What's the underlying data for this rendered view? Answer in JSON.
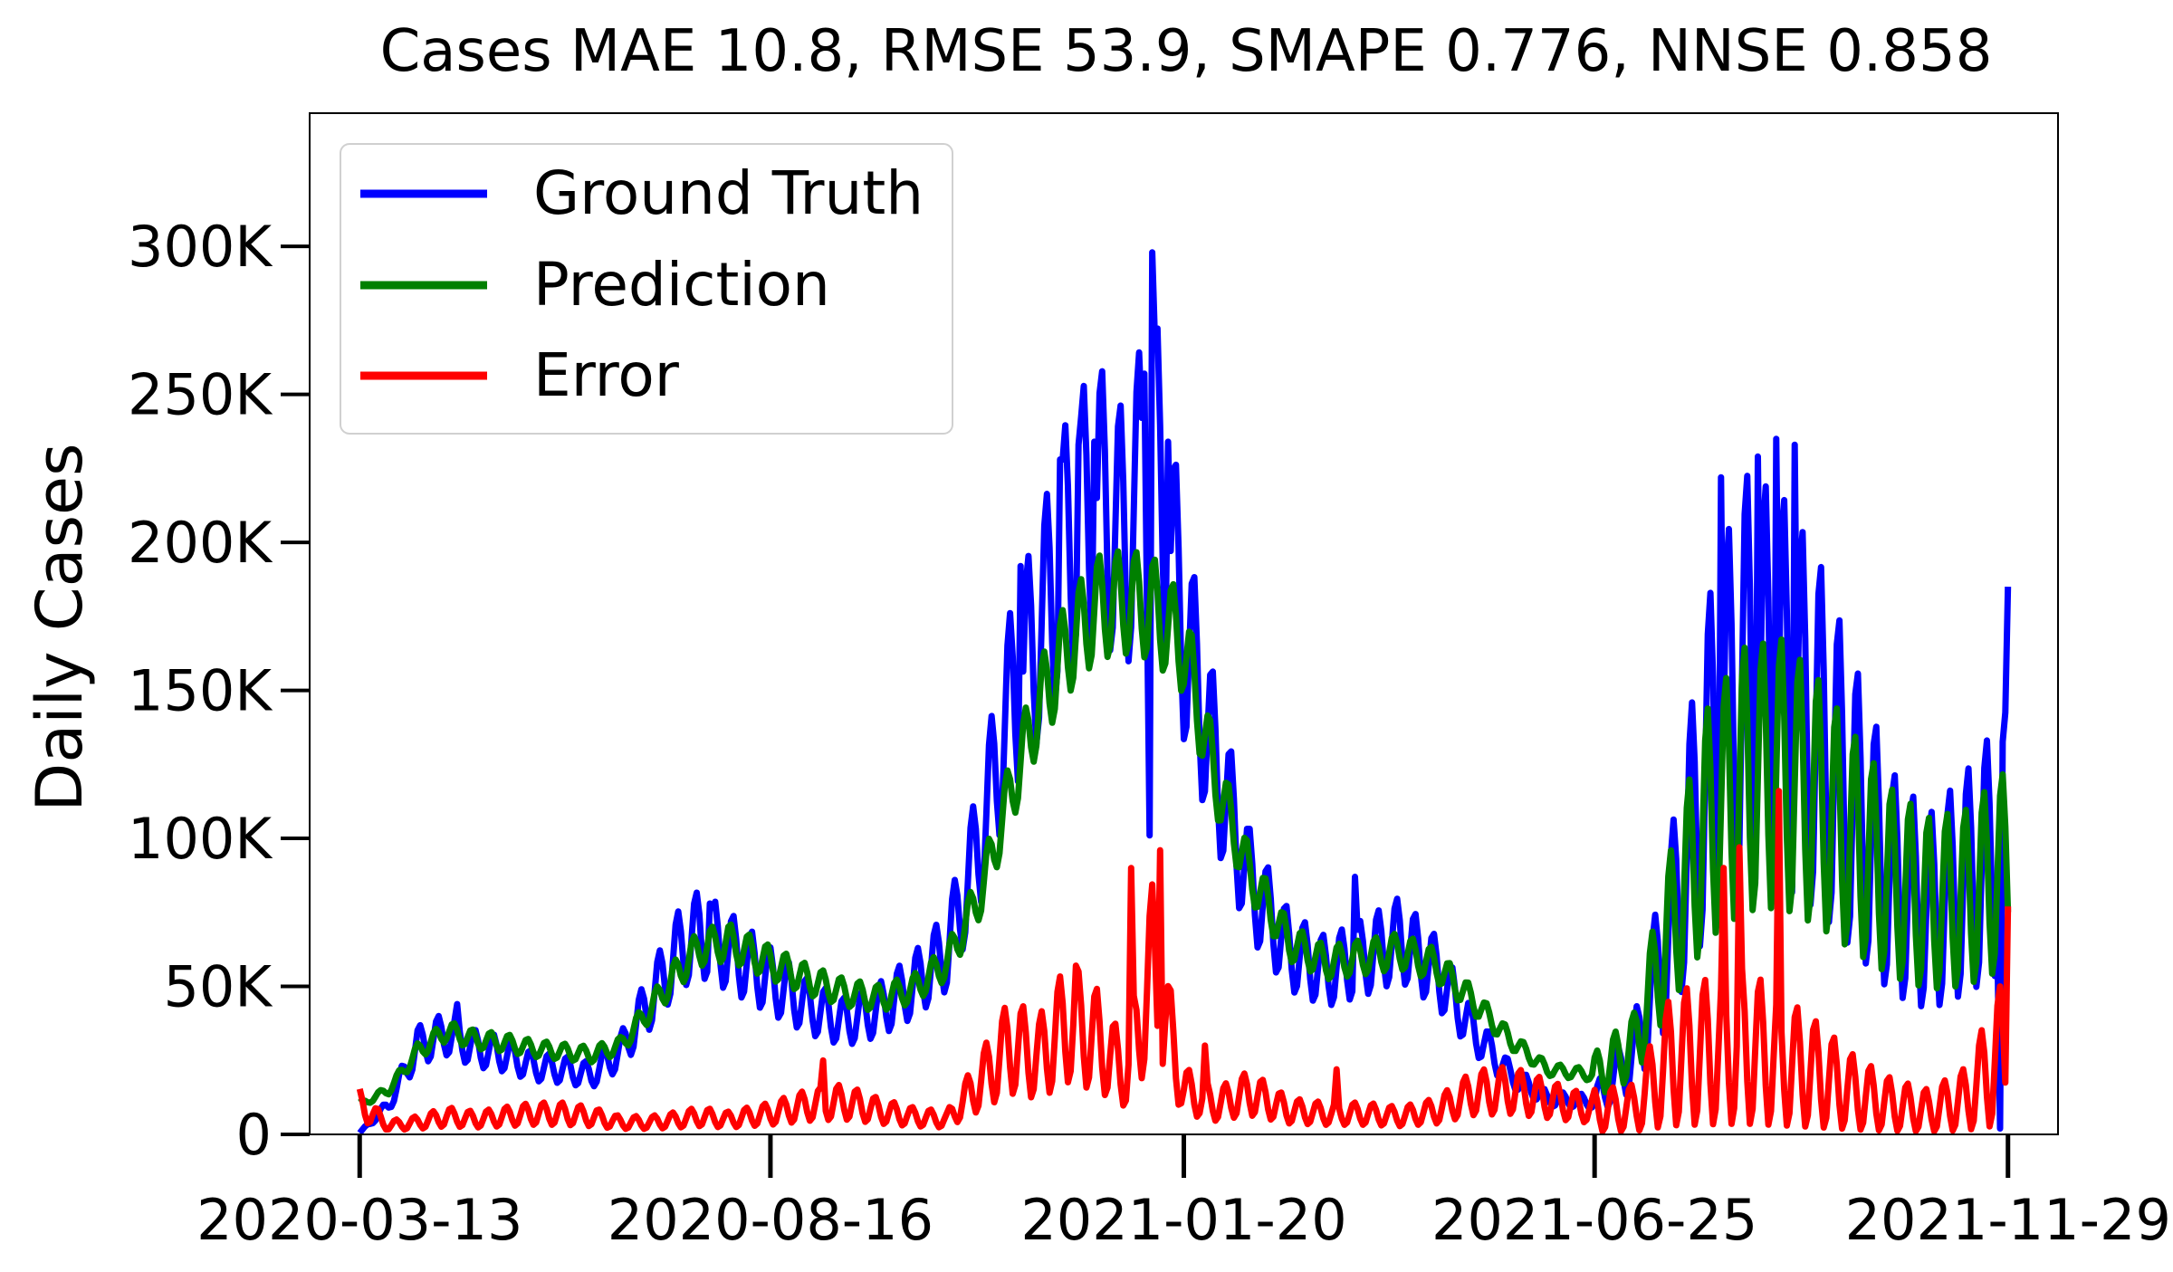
{
  "chart_data": {
    "type": "line",
    "title": "Cases MAE 10.8, RMSE 53.9, SMAPE 0.776, NNSE 0.858",
    "xlabel": "",
    "ylabel": "Daily Cases",
    "x_start": "2020-03-13",
    "x_end": "2021-11-29",
    "xlim": [
      "2020-02-23",
      "2021-12-18"
    ],
    "ylim": [
      0,
      345000
    ],
    "x_ticks": [
      "2020-03-13",
      "2020-08-16",
      "2021-01-20",
      "2021-06-25",
      "2021-11-29"
    ],
    "y_ticks": [
      0,
      50000,
      100000,
      150000,
      200000,
      250000,
      300000
    ],
    "y_tick_labels": [
      "0",
      "50K",
      "100K",
      "150K",
      "200K",
      "250K",
      "300K"
    ],
    "grid": false,
    "legend_position": "top-left",
    "series": [
      {
        "name": "Ground Truth",
        "color": "#0000ff",
        "keypoints": [
          {
            "x": "2020-03-13",
            "y": 500
          },
          {
            "x": "2020-03-24",
            "y": 10000
          },
          {
            "x": "2020-04-04",
            "y": 30000
          },
          {
            "x": "2020-04-15",
            "y": 34000
          },
          {
            "x": "2020-04-26",
            "y": 29000
          },
          {
            "x": "2020-05-07",
            "y": 27000
          },
          {
            "x": "2020-05-18",
            "y": 23000
          },
          {
            "x": "2020-05-29",
            "y": 22000
          },
          {
            "x": "2020-06-09",
            "y": 20000
          },
          {
            "x": "2020-06-20",
            "y": 28000
          },
          {
            "x": "2020-07-01",
            "y": 45000
          },
          {
            "x": "2020-07-12",
            "y": 62000
          },
          {
            "x": "2020-07-20",
            "y": 68000
          },
          {
            "x": "2020-07-31",
            "y": 62000
          },
          {
            "x": "2020-08-16",
            "y": 52000
          },
          {
            "x": "2020-08-31",
            "y": 43000
          },
          {
            "x": "2020-09-13",
            "y": 38000
          },
          {
            "x": "2020-09-26",
            "y": 42000
          },
          {
            "x": "2020-10-09",
            "y": 50000
          },
          {
            "x": "2020-10-22",
            "y": 62000
          },
          {
            "x": "2020-11-04",
            "y": 100000
          },
          {
            "x": "2020-11-15",
            "y": 145000
          },
          {
            "x": "2020-11-26",
            "y": 170000
          },
          {
            "x": "2020-12-07",
            "y": 200000
          },
          {
            "x": "2020-12-18",
            "y": 215000
          },
          {
            "x": "2020-12-29",
            "y": 200000
          },
          {
            "x": "2021-01-08",
            "y": 235000
          },
          {
            "x": "2021-01-20",
            "y": 170000
          },
          {
            "x": "2021-02-01",
            "y": 125000
          },
          {
            "x": "2021-02-14",
            "y": 85000
          },
          {
            "x": "2021-03-01",
            "y": 62000
          },
          {
            "x": "2021-03-15",
            "y": 55000
          },
          {
            "x": "2021-03-30",
            "y": 60000
          },
          {
            "x": "2021-04-12",
            "y": 66000
          },
          {
            "x": "2021-04-26",
            "y": 55000
          },
          {
            "x": "2021-05-10",
            "y": 35000
          },
          {
            "x": "2021-05-24",
            "y": 20000
          },
          {
            "x": "2021-06-07",
            "y": 12000
          },
          {
            "x": "2021-06-25",
            "y": 11000
          },
          {
            "x": "2021-07-10",
            "y": 27000
          },
          {
            "x": "2021-07-24",
            "y": 70000
          },
          {
            "x": "2021-08-07",
            "y": 125000
          },
          {
            "x": "2021-08-21",
            "y": 155000
          },
          {
            "x": "2021-09-04",
            "y": 150000
          },
          {
            "x": "2021-09-18",
            "y": 135000
          },
          {
            "x": "2021-10-02",
            "y": 110000
          },
          {
            "x": "2021-10-16",
            "y": 85000
          },
          {
            "x": "2021-10-30",
            "y": 75000
          },
          {
            "x": "2021-11-13",
            "y": 85000
          },
          {
            "x": "2021-11-29",
            "y": 100000
          }
        ],
        "spikes": [
          {
            "x": "2020-04-19",
            "y": 44000
          },
          {
            "x": "2020-07-24",
            "y": 78000
          },
          {
            "x": "2020-11-19",
            "y": 192000
          },
          {
            "x": "2020-12-04",
            "y": 228000
          },
          {
            "x": "2020-12-11",
            "y": 233000
          },
          {
            "x": "2020-12-17",
            "y": 234000
          },
          {
            "x": "2021-01-05",
            "y": 257000
          },
          {
            "x": "2021-01-08",
            "y": 298000
          },
          {
            "x": "2021-01-14",
            "y": 234000
          },
          {
            "x": "2021-01-07",
            "y": 101000
          },
          {
            "x": "2021-03-26",
            "y": 87000
          },
          {
            "x": "2021-08-12",
            "y": 222000
          },
          {
            "x": "2021-08-26",
            "y": 229000
          },
          {
            "x": "2021-09-02",
            "y": 235000
          },
          {
            "x": "2021-09-09",
            "y": 233000
          },
          {
            "x": "2021-11-29",
            "y": 185000
          },
          {
            "x": "2021-11-26",
            "y": 2000
          }
        ]
      },
      {
        "name": "Prediction",
        "color": "#008000",
        "keypoints": [
          {
            "x": "2020-03-13",
            "y": 10000
          },
          {
            "x": "2020-03-24",
            "y": 15000
          },
          {
            "x": "2020-04-04",
            "y": 28000
          },
          {
            "x": "2020-04-15",
            "y": 35000
          },
          {
            "x": "2020-04-26",
            "y": 32000
          },
          {
            "x": "2020-05-07",
            "y": 31000
          },
          {
            "x": "2020-05-18",
            "y": 29000
          },
          {
            "x": "2020-05-29",
            "y": 28000
          },
          {
            "x": "2020-06-09",
            "y": 27000
          },
          {
            "x": "2020-06-20",
            "y": 30000
          },
          {
            "x": "2020-07-01",
            "y": 42000
          },
          {
            "x": "2020-07-12",
            "y": 55000
          },
          {
            "x": "2020-07-20",
            "y": 63000
          },
          {
            "x": "2020-07-31",
            "y": 65000
          },
          {
            "x": "2020-08-16",
            "y": 58000
          },
          {
            "x": "2020-08-31",
            "y": 52000
          },
          {
            "x": "2020-09-13",
            "y": 48000
          },
          {
            "x": "2020-09-26",
            "y": 46000
          },
          {
            "x": "2020-10-09",
            "y": 49000
          },
          {
            "x": "2020-10-22",
            "y": 58000
          },
          {
            "x": "2020-11-04",
            "y": 82000
          },
          {
            "x": "2020-11-15",
            "y": 115000
          },
          {
            "x": "2020-11-26",
            "y": 145000
          },
          {
            "x": "2020-12-07",
            "y": 165000
          },
          {
            "x": "2020-12-18",
            "y": 178000
          },
          {
            "x": "2020-12-29",
            "y": 180000
          },
          {
            "x": "2021-01-08",
            "y": 178000
          },
          {
            "x": "2021-01-20",
            "y": 165000
          },
          {
            "x": "2021-02-01",
            "y": 120000
          },
          {
            "x": "2021-02-14",
            "y": 88000
          },
          {
            "x": "2021-03-01",
            "y": 65000
          },
          {
            "x": "2021-03-15",
            "y": 58000
          },
          {
            "x": "2021-03-30",
            "y": 60000
          },
          {
            "x": "2021-04-12",
            "y": 62000
          },
          {
            "x": "2021-04-26",
            "y": 57000
          },
          {
            "x": "2021-05-10",
            "y": 45000
          },
          {
            "x": "2021-05-24",
            "y": 32000
          },
          {
            "x": "2021-06-07",
            "y": 22000
          },
          {
            "x": "2021-06-25",
            "y": 20000
          },
          {
            "x": "2021-07-10",
            "y": 30000
          },
          {
            "x": "2021-07-24",
            "y": 70000
          },
          {
            "x": "2021-08-07",
            "y": 105000
          },
          {
            "x": "2021-08-21",
            "y": 120000
          },
          {
            "x": "2021-09-04",
            "y": 122000
          },
          {
            "x": "2021-09-18",
            "y": 112000
          },
          {
            "x": "2021-10-02",
            "y": 98000
          },
          {
            "x": "2021-10-16",
            "y": 85000
          },
          {
            "x": "2021-10-30",
            "y": 78000
          },
          {
            "x": "2021-11-13",
            "y": 80000
          },
          {
            "x": "2021-11-29",
            "y": 90000
          }
        ]
      },
      {
        "name": "Error",
        "color": "#ff0000",
        "keypoints": [
          {
            "x": "2020-03-13",
            "y": 10000
          },
          {
            "x": "2020-03-24",
            "y": 3000
          },
          {
            "x": "2020-04-04",
            "y": 4000
          },
          {
            "x": "2020-04-15",
            "y": 6000
          },
          {
            "x": "2020-04-26",
            "y": 5000
          },
          {
            "x": "2020-05-07",
            "y": 6000
          },
          {
            "x": "2020-05-18",
            "y": 7000
          },
          {
            "x": "2020-05-29",
            "y": 7000
          },
          {
            "x": "2020-06-09",
            "y": 6000
          },
          {
            "x": "2020-06-20",
            "y": 4000
          },
          {
            "x": "2020-07-01",
            "y": 4000
          },
          {
            "x": "2020-07-12",
            "y": 5000
          },
          {
            "x": "2020-07-20",
            "y": 6000
          },
          {
            "x": "2020-07-31",
            "y": 5000
          },
          {
            "x": "2020-08-16",
            "y": 7000
          },
          {
            "x": "2020-08-31",
            "y": 10000
          },
          {
            "x": "2020-09-13",
            "y": 11000
          },
          {
            "x": "2020-09-26",
            "y": 8000
          },
          {
            "x": "2020-10-09",
            "y": 6000
          },
          {
            "x": "2020-10-22",
            "y": 5000
          },
          {
            "x": "2020-11-04",
            "y": 18000
          },
          {
            "x": "2020-11-15",
            "y": 30000
          },
          {
            "x": "2020-11-26",
            "y": 26000
          },
          {
            "x": "2020-12-07",
            "y": 38000
          },
          {
            "x": "2020-12-18",
            "y": 32000
          },
          {
            "x": "2020-12-29",
            "y": 20000
          },
          {
            "x": "2021-01-08",
            "y": 55000
          },
          {
            "x": "2021-01-20",
            "y": 15000
          },
          {
            "x": "2021-02-01",
            "y": 10000
          },
          {
            "x": "2021-02-14",
            "y": 14000
          },
          {
            "x": "2021-03-01",
            "y": 8000
          },
          {
            "x": "2021-03-15",
            "y": 7000
          },
          {
            "x": "2021-03-30",
            "y": 7000
          },
          {
            "x": "2021-04-12",
            "y": 6000
          },
          {
            "x": "2021-04-26",
            "y": 8000
          },
          {
            "x": "2021-05-10",
            "y": 14000
          },
          {
            "x": "2021-05-24",
            "y": 15000
          },
          {
            "x": "2021-06-07",
            "y": 12000
          },
          {
            "x": "2021-06-25",
            "y": 8000
          },
          {
            "x": "2021-07-10",
            "y": 9000
          },
          {
            "x": "2021-07-24",
            "y": 25000
          },
          {
            "x": "2021-08-07",
            "y": 28000
          },
          {
            "x": "2021-08-21",
            "y": 30000
          },
          {
            "x": "2021-09-04",
            "y": 25000
          },
          {
            "x": "2021-09-18",
            "y": 20000
          },
          {
            "x": "2021-10-02",
            "y": 14000
          },
          {
            "x": "2021-10-16",
            "y": 10000
          },
          {
            "x": "2021-10-30",
            "y": 8000
          },
          {
            "x": "2021-11-13",
            "y": 12000
          },
          {
            "x": "2021-11-29",
            "y": 30000
          }
        ],
        "spikes": [
          {
            "x": "2020-09-05",
            "y": 25000
          },
          {
            "x": "2020-12-10",
            "y": 57000
          },
          {
            "x": "2020-12-31",
            "y": 90000
          },
          {
            "x": "2021-01-11",
            "y": 96000
          },
          {
            "x": "2021-01-28",
            "y": 30000
          },
          {
            "x": "2021-03-19",
            "y": 22000
          },
          {
            "x": "2021-08-13",
            "y": 90000
          },
          {
            "x": "2021-08-19",
            "y": 97000
          },
          {
            "x": "2021-09-03",
            "y": 116000
          },
          {
            "x": "2021-11-29",
            "y": 77000
          }
        ]
      }
    ]
  }
}
